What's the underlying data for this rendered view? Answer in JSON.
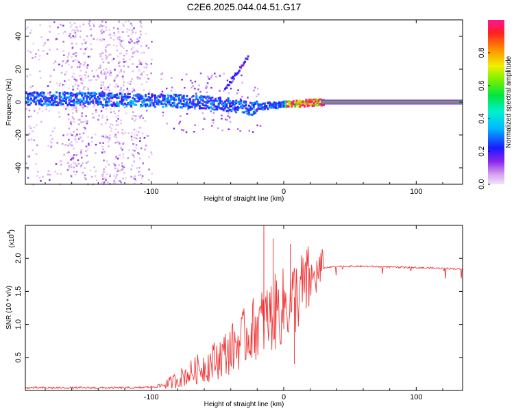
{
  "title": "C2E6.2025.044.04.51.G17",
  "chart_data": [
    {
      "type": "heatmap",
      "xlabel": "Height of straight line (km)",
      "ylabel": "Frequency (Hz)",
      "xlim": [
        -195,
        135
      ],
      "ylim": [
        -50,
        50
      ],
      "x_ticks": [
        -100,
        0,
        100
      ],
      "x_tick_labels": [
        "-100",
        "0",
        "100"
      ],
      "y_ticks": [
        -40,
        -20,
        0,
        20,
        40
      ],
      "y_tick_labels": [
        "-40",
        "-20",
        "0",
        "20",
        "40"
      ],
      "colorbar": {
        "label": "Normalized spectral amplitude",
        "range": [
          0,
          1
        ],
        "ticks": [
          0,
          0.2,
          0.4,
          0.6,
          0.8
        ],
        "tick_labels": [
          "0.0",
          "0.2",
          "0.4",
          "0.6",
          "0.8"
        ]
      },
      "ridge": [
        {
          "x": -195,
          "f": 2,
          "amp": 0.35
        },
        {
          "x": -150,
          "f": 2,
          "amp": 0.4
        },
        {
          "x": -100,
          "f": 1,
          "amp": 0.45
        },
        {
          "x": -60,
          "f": 0,
          "amp": 0.45
        },
        {
          "x": -40,
          "f": -2,
          "amp": 0.45
        },
        {
          "x": -25,
          "f": -4,
          "amp": 0.5
        },
        {
          "x": -10,
          "f": -2,
          "amp": 0.65
        },
        {
          "x": 10,
          "f": -1,
          "amp": 0.75
        },
        {
          "x": 30,
          "f": 0,
          "amp": 1.0
        },
        {
          "x": 135,
          "f": 0,
          "amp": 1.0
        }
      ]
    },
    {
      "type": "line",
      "xlabel": "Height of straight line (km)",
      "ylabel": "SNR (10 * v/v)",
      "y_scale_label": "(x10",
      "y_scale_exponent": "4",
      "xlim": [
        -195,
        135
      ],
      "ylim": [
        0,
        2.5
      ],
      "x_ticks": [
        -100,
        0,
        100
      ],
      "x_tick_labels": [
        "-100",
        "0",
        "100"
      ],
      "y_ticks": [
        0.5,
        1.0,
        1.5,
        2.0
      ],
      "y_tick_labels": [
        "0.5",
        "1.0",
        "1.5",
        "2.0"
      ],
      "color": "#ee3333",
      "series": [
        {
          "name": "SNR",
          "x": [
            -195,
            -150,
            -110,
            -95,
            -85,
            -75,
            -65,
            -55,
            -45,
            -35,
            -25,
            -15,
            -5,
            5,
            15,
            25,
            30,
            40,
            60,
            80,
            100,
            120,
            135
          ],
          "values": [
            0.04,
            0.04,
            0.04,
            0.06,
            0.12,
            0.22,
            0.32,
            0.42,
            0.55,
            0.7,
            0.9,
            1.05,
            1.2,
            1.35,
            1.55,
            1.75,
            1.85,
            1.88,
            1.88,
            1.87,
            1.86,
            1.85,
            1.84
          ]
        }
      ],
      "spikes": [
        {
          "x": -15,
          "y": 2.5
        },
        {
          "x": -8,
          "y": 2.3
        },
        {
          "x": 5,
          "y": 2.22
        },
        {
          "x": 8,
          "y": 0.4
        },
        {
          "x": 28,
          "y": 2.0
        }
      ]
    }
  ]
}
